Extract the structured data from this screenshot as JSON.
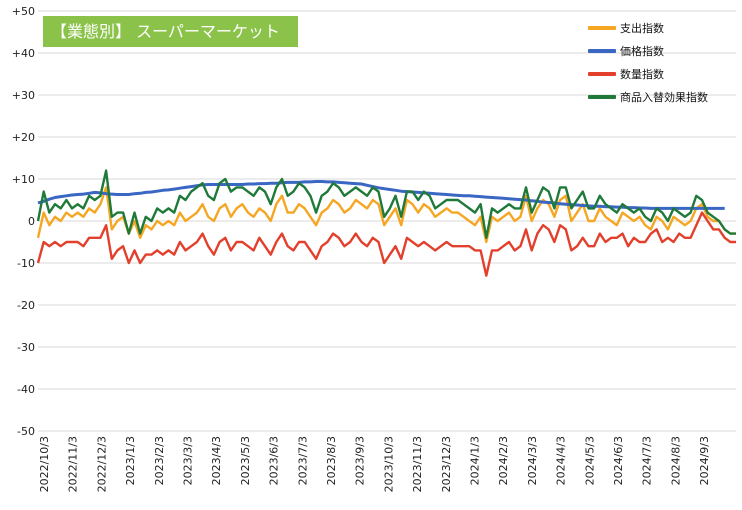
{
  "chart_data": {
    "type": "line",
    "title": "【業態別】 スーパーマーケット",
    "ylim": [
      -50,
      50
    ],
    "y_ticks": [
      "+50",
      "+40",
      "+30",
      "+20",
      "+10",
      "0",
      "-10",
      "-20",
      "-30",
      "-40",
      "-50"
    ],
    "x_tick_labels": [
      "2022/10/3",
      "2022/11/3",
      "2022/12/3",
      "2023/1/3",
      "2023/2/3",
      "2023/3/3",
      "2023/4/3",
      "2023/5/3",
      "2023/6/3",
      "2023/7/3",
      "2023/8/3",
      "2023/9/3",
      "2023/10/3",
      "2023/11/3",
      "2023/12/3",
      "2024/1/3",
      "2024/2/3",
      "2024/3/3",
      "2024/4/3",
      "2024/5/3",
      "2024/6/3",
      "2024/7/3",
      "2024/8/3",
      "2024/9/3"
    ],
    "grid": true,
    "legend_position": "top-right",
    "series": [
      {
        "name": "支出指数",
        "color": "#f5a623",
        "values": [
          -4,
          2,
          -1,
          1,
          0,
          2,
          1,
          2,
          1,
          3,
          2,
          4,
          8,
          -2,
          0,
          1,
          -3,
          0,
          -4,
          -1,
          -2,
          0,
          -1,
          0,
          -1,
          2,
          0,
          1,
          2,
          4,
          1,
          0,
          3,
          4,
          1,
          3,
          4,
          2,
          1,
          3,
          2,
          0,
          4,
          6,
          2,
          2,
          4,
          3,
          1,
          -1,
          2,
          3,
          5,
          4,
          2,
          3,
          5,
          4,
          3,
          5,
          4,
          -1,
          1,
          3,
          -1,
          5,
          4,
          2,
          4,
          3,
          1,
          2,
          3,
          2,
          2,
          1,
          0,
          -1,
          1,
          -5,
          1,
          0,
          1,
          2,
          0,
          1,
          6,
          0,
          3,
          5,
          4,
          1,
          5,
          6,
          0,
          2,
          4,
          0,
          0,
          3,
          1,
          0,
          -1,
          2,
          1,
          0,
          1,
          -1,
          -2,
          1,
          0,
          -2,
          1,
          0,
          -1,
          0,
          3,
          4,
          1,
          0,
          0,
          -2,
          -3,
          -3
        ]
      },
      {
        "name": "価格指数",
        "color": "#3a66c4",
        "values": [
          4.3,
          4.7,
          5.2,
          5.6,
          5.8,
          6.0,
          6.2,
          6.3,
          6.4,
          6.6,
          6.8,
          6.7,
          6.5,
          6.4,
          6.3,
          6.3,
          6.3,
          6.5,
          6.6,
          6.8,
          6.9,
          7.1,
          7.3,
          7.4,
          7.6,
          7.8,
          8.0,
          8.2,
          8.4,
          8.6,
          8.7,
          8.7,
          8.7,
          8.7,
          8.7,
          8.7,
          8.7,
          8.8,
          8.8,
          8.9,
          8.9,
          9.0,
          9.0,
          9.1,
          9.2,
          9.2,
          9.2,
          9.3,
          9.3,
          9.4,
          9.4,
          9.3,
          9.3,
          9.2,
          9.1,
          9.0,
          8.9,
          8.8,
          8.5,
          8.2,
          7.9,
          7.7,
          7.5,
          7.3,
          7.1,
          7.0,
          6.9,
          6.8,
          6.7,
          6.6,
          6.5,
          6.4,
          6.3,
          6.2,
          6.1,
          6.0,
          6.0,
          5.9,
          5.8,
          5.7,
          5.6,
          5.5,
          5.4,
          5.3,
          5.2,
          5.1,
          5.0,
          4.8,
          4.7,
          4.5,
          4.4,
          4.3,
          4.1,
          4.0,
          3.9,
          3.8,
          3.7,
          3.6,
          3.5,
          3.5,
          3.4,
          3.4,
          3.3,
          3.3,
          3.2,
          3.2,
          3.1,
          3.1,
          3.0,
          3.0,
          3.0,
          3.0,
          3.0,
          3.0,
          3.0,
          3.0,
          3.0,
          3.0,
          3.0,
          3.0,
          3.0,
          3.0
        ]
      },
      {
        "name": "数量指数",
        "color": "#e2402c",
        "values": [
          -10,
          -5,
          -6,
          -5,
          -6,
          -5,
          -5,
          -5,
          -6,
          -4,
          -4,
          -4,
          -1,
          -9,
          -7,
          -6,
          -10,
          -7,
          -10,
          -8,
          -8,
          -7,
          -8,
          -7,
          -8,
          -5,
          -7,
          -6,
          -5,
          -3,
          -6,
          -8,
          -5,
          -4,
          -7,
          -5,
          -5,
          -6,
          -7,
          -4,
          -6,
          -8,
          -5,
          -3,
          -6,
          -7,
          -5,
          -5,
          -7,
          -9,
          -6,
          -5,
          -3,
          -4,
          -6,
          -5,
          -3,
          -5,
          -6,
          -4,
          -5,
          -10,
          -8,
          -6,
          -9,
          -4,
          -5,
          -6,
          -5,
          -6,
          -7,
          -6,
          -5,
          -6,
          -6,
          -6,
          -6,
          -7,
          -7,
          -13,
          -7,
          -7,
          -6,
          -5,
          -7,
          -6,
          -2,
          -7,
          -3,
          -1,
          -2,
          -5,
          -1,
          -2,
          -7,
          -6,
          -4,
          -6,
          -6,
          -3,
          -5,
          -4,
          -4,
          -3,
          -6,
          -4,
          -5,
          -5,
          -3,
          -2,
          -5,
          -4,
          -5,
          -3,
          -4,
          -4,
          -1,
          2,
          0,
          -2,
          -2,
          -4,
          -5,
          -5
        ]
      },
      {
        "name": "商品入替効果指数",
        "color": "#1f7a3a",
        "values": [
          0,
          7,
          2,
          4,
          3,
          5,
          3,
          4,
          3,
          6,
          5,
          6,
          12,
          1,
          2,
          2,
          -3,
          2,
          -3,
          1,
          0,
          3,
          2,
          3,
          2,
          6,
          5,
          7,
          8,
          9,
          6,
          5,
          9,
          10,
          7,
          8,
          8,
          7,
          6,
          8,
          7,
          4,
          8,
          10,
          6,
          7,
          9,
          8,
          6,
          2,
          6,
          7,
          9,
          8,
          6,
          7,
          8,
          7,
          6,
          8,
          7,
          1,
          3,
          6,
          1,
          7,
          7,
          5,
          7,
          6,
          3,
          4,
          5,
          5,
          5,
          4,
          3,
          2,
          4,
          -4,
          3,
          2,
          3,
          4,
          3,
          3,
          8,
          2,
          5,
          8,
          7,
          3,
          8,
          8,
          3,
          5,
          7,
          3,
          3,
          6,
          4,
          3,
          2,
          4,
          3,
          2,
          3,
          1,
          0,
          3,
          2,
          0,
          3,
          2,
          1,
          2,
          6,
          5,
          2,
          1,
          0,
          -2,
          -3,
          -3
        ]
      }
    ]
  }
}
